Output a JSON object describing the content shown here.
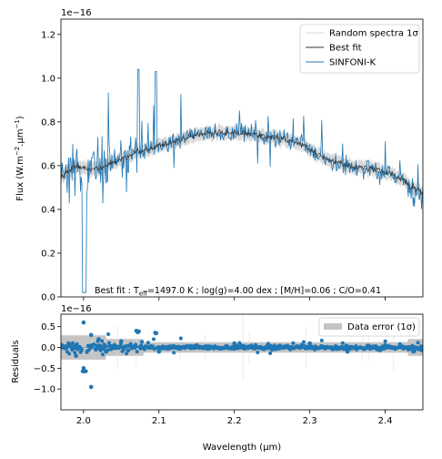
{
  "chart_data": [
    {
      "type": "line",
      "title": "",
      "xlabel": "",
      "ylabel": "Flux (W.m⁻².µm⁻¹)",
      "ylabel_parts": {
        "before": "Flux (W.m",
        "sup1": "−2",
        "mid": ".µm",
        "sup2": "−1",
        "after": ")"
      },
      "offset_text": "1e−16",
      "xlim": [
        1.97,
        2.45
      ],
      "ylim": [
        0,
        1.27
      ],
      "y_ticks": [
        "0.0",
        "0.2",
        "0.4",
        "0.6",
        "0.8",
        "1.0",
        "1.2"
      ],
      "x_ticks_shown": false,
      "grid": false,
      "legend_position": "top-right",
      "legend": [
        {
          "name": "Random spectra 1σ",
          "color": "#d9d9d9"
        },
        {
          "name": "Best fit",
          "color": "#333333"
        },
        {
          "name": "SINFONI-K",
          "color": "#1f77b4"
        }
      ],
      "series": [
        {
          "name": "SINFONI-K",
          "color": "#1f77b4",
          "x": [
            1.97,
            1.99,
            2.01,
            2.03,
            2.05,
            2.07,
            2.09,
            2.11,
            2.13,
            2.15,
            2.17,
            2.19,
            2.21,
            2.23,
            2.25,
            2.27,
            2.29,
            2.31,
            2.33,
            2.35,
            2.37,
            2.39,
            2.41,
            2.43,
            2.45
          ],
          "y": [
            0.55,
            0.6,
            0.58,
            0.6,
            0.63,
            0.66,
            0.68,
            0.7,
            0.72,
            0.74,
            0.75,
            0.75,
            0.75,
            0.74,
            0.73,
            0.72,
            0.7,
            0.65,
            0.62,
            0.6,
            0.59,
            0.58,
            0.56,
            0.52,
            0.47
          ]
        },
        {
          "name": "Best fit",
          "color": "#333333",
          "x": [
            1.97,
            1.99,
            2.01,
            2.03,
            2.05,
            2.07,
            2.09,
            2.11,
            2.13,
            2.15,
            2.17,
            2.19,
            2.21,
            2.23,
            2.25,
            2.27,
            2.29,
            2.31,
            2.33,
            2.35,
            2.37,
            2.39,
            2.41,
            2.43,
            2.45
          ],
          "y": [
            0.55,
            0.6,
            0.58,
            0.6,
            0.63,
            0.66,
            0.68,
            0.7,
            0.72,
            0.74,
            0.75,
            0.75,
            0.75,
            0.74,
            0.73,
            0.72,
            0.7,
            0.65,
            0.62,
            0.6,
            0.59,
            0.58,
            0.56,
            0.52,
            0.47
          ]
        }
      ],
      "annotation": {
        "before": "Best fit : T",
        "sub": "eff",
        "after": "=1497.0 K ; log(g)=4.00 dex ; [M/H]=0.06 ; C/O=0.41"
      }
    },
    {
      "type": "scatter",
      "title": "",
      "xlabel": "Wavelength (µm)",
      "ylabel": "Residuals",
      "offset_text": "1e−16",
      "xlim": [
        1.97,
        2.45
      ],
      "ylim": [
        -1.5,
        0.8
      ],
      "x_ticks": [
        "2.0",
        "2.1",
        "2.2",
        "2.3",
        "2.4"
      ],
      "x_tick_values": [
        2.0,
        2.1,
        2.2,
        2.3,
        2.4
      ],
      "y_ticks": [
        "−1.0",
        "−0.5",
        "0.0",
        "0.5"
      ],
      "y_tick_values": [
        -1.0,
        -0.5,
        0.0,
        0.5
      ],
      "grid": false,
      "legend_position": "top-right",
      "legend": [
        {
          "name": "Data error (1σ)",
          "color": "#c4c4c4"
        }
      ],
      "series": [
        {
          "name": "Residuals",
          "color": "#1f77b4",
          "x": [
            1.98,
            1.99,
            2.0,
            2.0,
            2.01,
            2.01,
            2.02,
            2.03,
            2.05,
            2.07,
            2.1,
            2.15,
            2.2,
            2.25,
            2.3,
            2.35,
            2.4,
            2.44
          ],
          "y": [
            0.1,
            -0.2,
            0.6,
            -0.5,
            0.3,
            -0.95,
            0.2,
            -0.1,
            0.15,
            0.4,
            -0.1,
            0.05,
            0.1,
            -0.05,
            0.1,
            -0.1,
            0.05,
            0.0
          ]
        }
      ]
    }
  ]
}
